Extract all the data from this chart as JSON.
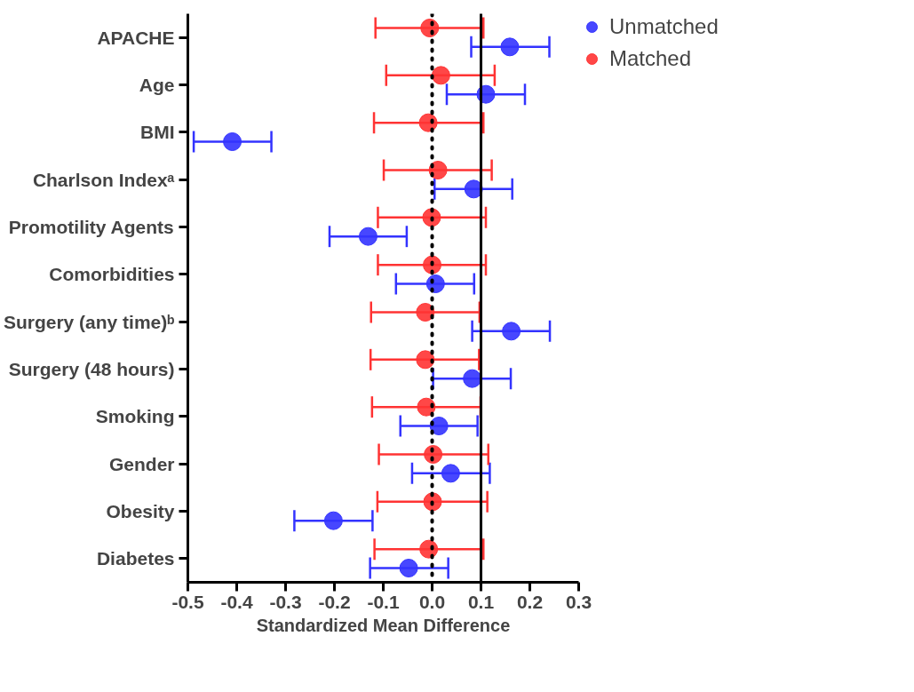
{
  "chart_data": {
    "type": "scatter",
    "orientation": "horizontal",
    "xlabel": "Standardized Mean Difference",
    "categories": [
      "APACHE",
      "Age",
      "BMI",
      "Charlson Indexᵃ",
      "Promotility Agents",
      "Comorbidities",
      "Surgery (any time)ᵇ",
      "Surgery (48 hours)",
      "Smoking",
      "Gender",
      "Obesity",
      "Diabetes"
    ],
    "series": [
      {
        "name": "Unmatched",
        "color": "#3333ff",
        "values": [
          0.159,
          0.11,
          -0.409,
          0.085,
          -0.131,
          0.007,
          0.162,
          0.082,
          0.014,
          0.038,
          -0.202,
          -0.048
        ],
        "errors": [
          [
            0.08,
            0.24
          ],
          [
            0.03,
            0.19
          ],
          [
            -0.488,
            -0.329
          ],
          [
            0.005,
            0.164
          ],
          [
            -0.21,
            -0.052
          ],
          [
            -0.074,
            0.086
          ],
          [
            0.082,
            0.241
          ],
          [
            0.002,
            0.161
          ],
          [
            -0.065,
            0.093
          ],
          [
            -0.041,
            0.118
          ],
          [
            -0.282,
            -0.122
          ],
          [
            -0.127,
            0.033
          ]
        ]
      },
      {
        "name": "Matched",
        "color": "#ff3333",
        "values": [
          -0.005,
          0.018,
          -0.008,
          0.012,
          -0.001,
          0.0,
          -0.014,
          -0.014,
          -0.012,
          0.002,
          0.001,
          -0.007
        ],
        "errors": [
          [
            -0.116,
            0.105
          ],
          [
            -0.094,
            0.128
          ],
          [
            -0.119,
            0.105
          ],
          [
            -0.099,
            0.122
          ],
          [
            -0.111,
            0.11
          ],
          [
            -0.111,
            0.11
          ],
          [
            -0.125,
            0.097
          ],
          [
            -0.126,
            0.096
          ],
          [
            -0.123,
            0.099
          ],
          [
            -0.109,
            0.115
          ],
          [
            -0.112,
            0.113
          ],
          [
            -0.118,
            0.105
          ]
        ]
      }
    ],
    "xlim": [
      -0.5,
      0.3
    ],
    "xticks": [
      -0.5,
      -0.4,
      -0.3,
      -0.2,
      -0.1,
      {
        "value": 0,
        "label": "0.0"
      },
      0.1,
      0.2,
      0.3
    ],
    "ref_lines": [
      {
        "axis": "x",
        "value": 0,
        "line_style": "dotted",
        "color": "#000000"
      },
      {
        "axis": "x",
        "value": 0.1,
        "line_style": "solid",
        "color": "#000000"
      }
    ],
    "marker": "circle",
    "grid": false,
    "legend": "top right"
  }
}
